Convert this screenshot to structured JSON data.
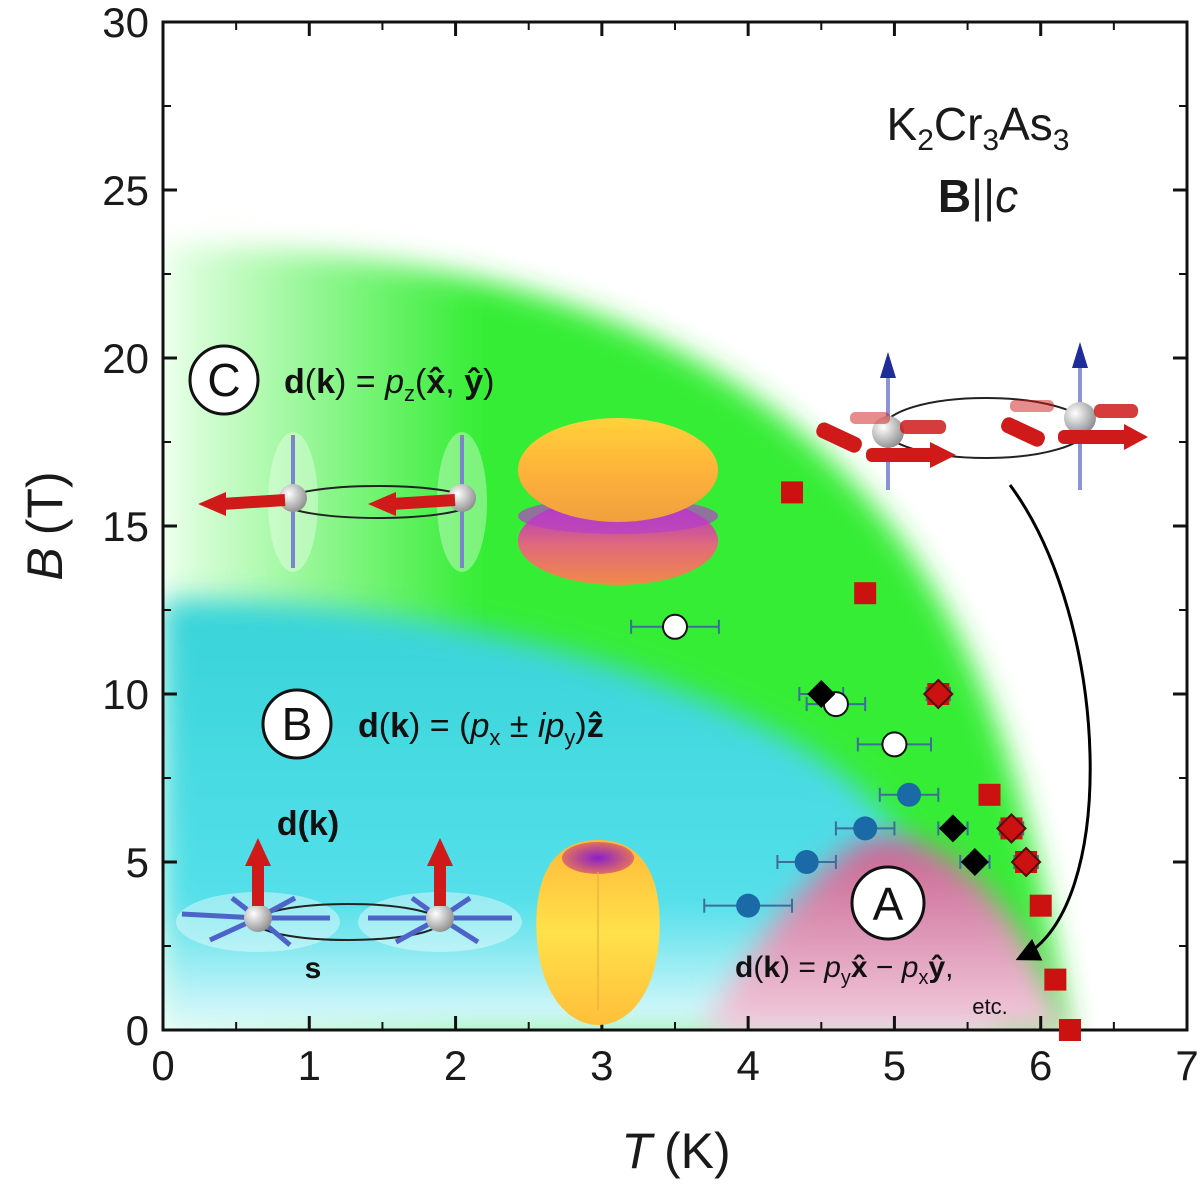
{
  "chart_data": {
    "type": "scatter",
    "xlabel_symbol": "T",
    "xlabel_unit": "(K)",
    "ylabel_symbol": "B",
    "ylabel_unit": "(T)",
    "xlim": [
      0,
      7
    ],
    "ylim": [
      0,
      30
    ],
    "x_ticks": [
      "0",
      "1",
      "2",
      "3",
      "4",
      "5",
      "6",
      "7"
    ],
    "y_ticks": [
      "0",
      "5",
      "10",
      "15",
      "20",
      "25",
      "30"
    ],
    "compound": {
      "p1": "K",
      "s1": "2",
      "p2": "Cr",
      "s2": "3",
      "p3": "As",
      "s3": "3"
    },
    "field_dir": {
      "bold": "B",
      "mid": "||",
      "italic": "c"
    },
    "phases": [
      {
        "letter": "C",
        "formula": "d(k) = pz(x̂, ŷ)"
      },
      {
        "letter": "B",
        "formula": "d(k) = (px ± ipy)ẑ"
      },
      {
        "letter": "A",
        "formula": "d(k) = pyx̂ − pxŷ,",
        "note": "etc."
      }
    ],
    "arrow_labels": {
      "d_vector": "d(k)",
      "spin": "s"
    },
    "colors": {
      "phase_C": "#28ee28",
      "phase_B": "#35d8dc",
      "phase_A": "#d0709c",
      "red_square": "#cc1111",
      "black_diamond": "#000000",
      "blue_circle": "#1a6aa8",
      "open_circle": "#ffffff"
    },
    "series": [
      {
        "marker": "red-square",
        "points": [
          [
            4.3,
            16.0
          ],
          [
            4.8,
            13.0
          ],
          [
            5.3,
            10.0
          ],
          [
            5.65,
            7.0
          ],
          [
            5.8,
            6.0
          ],
          [
            5.9,
            5.0
          ],
          [
            6.0,
            3.7
          ],
          [
            6.1,
            1.5
          ],
          [
            6.2,
            0.0
          ]
        ]
      },
      {
        "marker": "red-diamond",
        "points": [
          [
            5.3,
            10.0
          ],
          [
            5.8,
            6.0
          ],
          [
            5.9,
            5.0
          ]
        ]
      },
      {
        "marker": "black-diamond",
        "points": [
          [
            4.5,
            10.0
          ],
          [
            5.4,
            6.0
          ],
          [
            5.55,
            5.0
          ]
        ]
      },
      {
        "marker": "open-circle",
        "points": [
          [
            3.5,
            12.0
          ],
          [
            4.6,
            9.7
          ],
          [
            5.0,
            8.5
          ]
        ]
      },
      {
        "marker": "blue-circle",
        "points": [
          [
            4.0,
            3.7
          ],
          [
            4.4,
            5.0
          ],
          [
            4.8,
            6.0
          ],
          [
            5.1,
            7.0
          ]
        ]
      }
    ],
    "error_bars": [
      {
        "x": 3.5,
        "y": 12.0,
        "dx": 0.3
      },
      {
        "x": 4.6,
        "y": 9.7,
        "dx": 0.2
      },
      {
        "x": 5.0,
        "y": 8.5,
        "dx": 0.25
      },
      {
        "x": 4.5,
        "y": 10.0,
        "dx": 0.15
      },
      {
        "x": 5.4,
        "y": 6.0,
        "dx": 0.1
      },
      {
        "x": 5.55,
        "y": 5.0,
        "dx": 0.1
      },
      {
        "x": 5.3,
        "y": 10.0,
        "dx": 0.08
      },
      {
        "x": 5.8,
        "y": 6.0,
        "dx": 0.08
      },
      {
        "x": 5.9,
        "y": 5.0,
        "dx": 0.08
      },
      {
        "x": 4.0,
        "y": 3.7,
        "dx": 0.3
      },
      {
        "x": 4.4,
        "y": 5.0,
        "dx": 0.2
      },
      {
        "x": 4.8,
        "y": 6.0,
        "dx": 0.2
      },
      {
        "x": 5.1,
        "y": 7.0,
        "dx": 0.2
      }
    ]
  }
}
